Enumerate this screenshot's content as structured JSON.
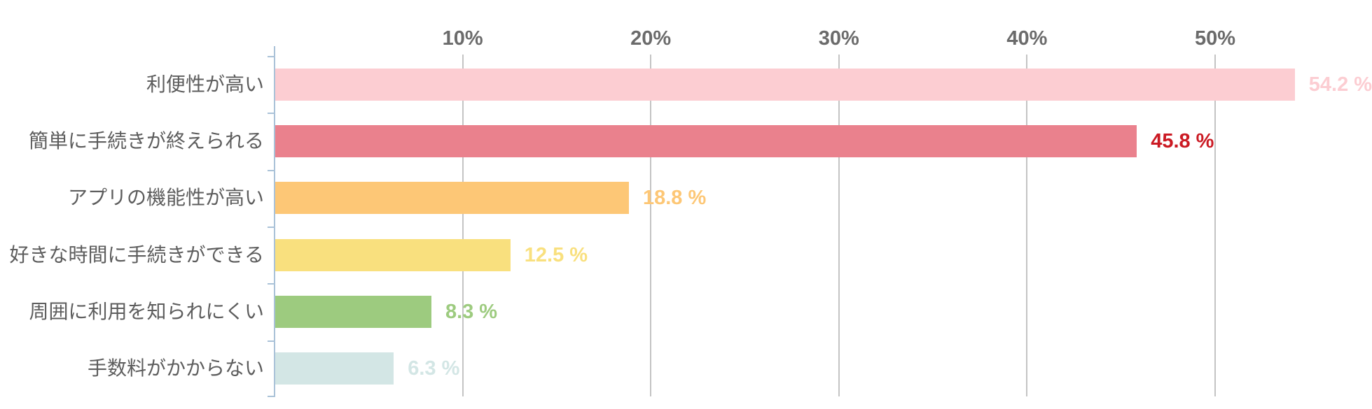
{
  "chart_data": {
    "type": "bar",
    "orientation": "horizontal",
    "title": "",
    "xlabel": "",
    "ylabel": "",
    "xlim": [
      0,
      58
    ],
    "grid": true,
    "legend": "none",
    "x_ticks": [
      {
        "label": "10%",
        "value": 10
      },
      {
        "label": "20%",
        "value": 20
      },
      {
        "label": "30%",
        "value": 30
      },
      {
        "label": "40%",
        "value": 40
      },
      {
        "label": "50%",
        "value": 50
      }
    ],
    "categories": [
      "利便性が高い",
      "簡単に手続きが終えられる",
      "アプリの機能性が高い",
      "好きな時間に手続きができる",
      "周囲に利用を知られにくい",
      "手数料がかからない"
    ],
    "values": [
      54.2,
      45.8,
      18.8,
      12.5,
      8.3,
      6.3
    ],
    "value_labels": [
      "54.2 %",
      "45.8 %",
      "18.8 %",
      "12.5 %",
      "8.3 %",
      "6.3 %"
    ],
    "bar_colors": [
      "#fccdd2",
      "#ea818d",
      "#fdc776",
      "#f9e07e",
      "#9dcb7f",
      "#d3e6e5"
    ],
    "value_label_colors": [
      "#fccdd2",
      "#cb1a23",
      "#fdc776",
      "#f9e07e",
      "#9dcb7f",
      "#d3e6e5"
    ],
    "highlighted_index": 1
  },
  "style_colors": {
    "gridline": "#c4c4c4",
    "axis": "#aac2d8",
    "x_tick_text": "#6b6b6b",
    "category_text": "#5d5d5d",
    "background": "#ffffff"
  }
}
